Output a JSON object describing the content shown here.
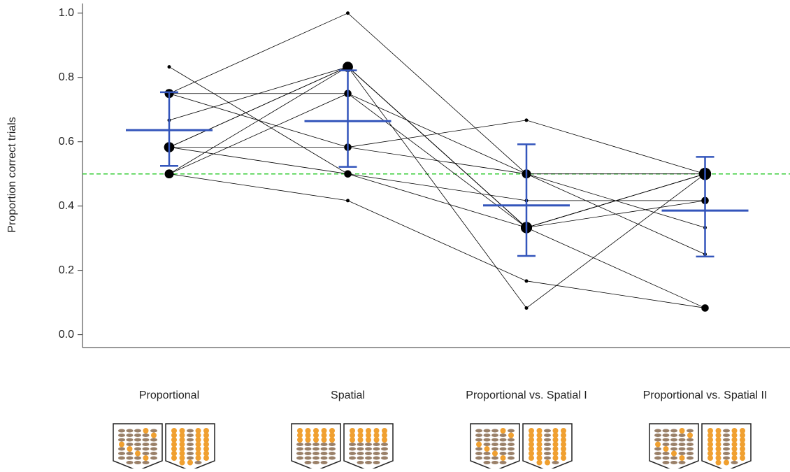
{
  "chart_data": {
    "type": "paired-dots",
    "y_label": "Proportion correct trials",
    "categories": [
      "Proportional",
      "Spatial",
      "Proportional vs. Spatial I",
      "Proportional vs. Spatial II"
    ],
    "series": [
      {
        "values": [
          0.833,
          0.5,
          0.333,
          0.5
        ]
      },
      {
        "values": [
          0.75,
          1.0,
          0.5,
          0.5
        ]
      },
      {
        "values": [
          0.75,
          0.75,
          0.333,
          0.417
        ]
      },
      {
        "values": [
          0.75,
          0.583,
          0.5,
          0.333
        ]
      },
      {
        "values": [
          0.667,
          0.833,
          0.333,
          0.083
        ]
      },
      {
        "values": [
          0.583,
          0.833,
          0.083,
          0.5
        ]
      },
      {
        "values": [
          0.583,
          0.833,
          0.333,
          0.5
        ]
      },
      {
        "values": [
          0.583,
          0.583,
          0.667,
          0.5
        ]
      },
      {
        "values": [
          0.5,
          0.75,
          0.5,
          0.25
        ]
      },
      {
        "values": [
          0.5,
          0.417,
          0.167,
          0.083
        ]
      },
      {
        "values": [
          0.583,
          0.5,
          0.417,
          0.417
        ]
      },
      {
        "values": [
          0.5,
          0.833,
          0.333,
          0.5
        ]
      }
    ],
    "line_color": "#000000",
    "mean": [
      0.636,
      0.664,
      0.402,
      0.386
    ],
    "lower": [
      0.525,
      0.522,
      0.245,
      0.243
    ],
    "upper": [
      0.754,
      0.822,
      0.592,
      0.553
    ],
    "mean_color": "#3355bb",
    "reference_line": 0.5,
    "reference_color": "#33cc33",
    "ylim": [
      -0.04,
      1.03
    ],
    "yticks": [
      {
        "value": 0,
        "label": "0.0"
      },
      0.2,
      0.4,
      0.6,
      0.8,
      {
        "value": 1,
        "label": "1.0"
      }
    ]
  }
}
